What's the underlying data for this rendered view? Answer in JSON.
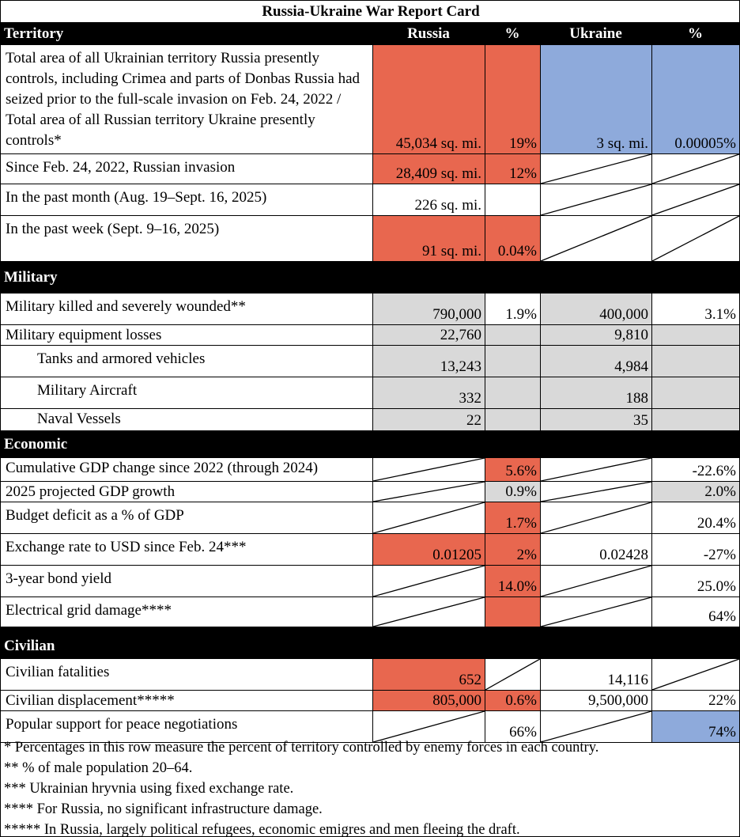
{
  "title": "Russia-Ukraine War Report Card",
  "sections": {
    "territory": {
      "label": "Territory",
      "russia": "Russia",
      "pct": "%",
      "ukraine": "Ukraine",
      "pct2": "%"
    },
    "military": {
      "label": "Military"
    },
    "economic": {
      "label": "Economic"
    },
    "civilian": {
      "label": "Civilian"
    }
  },
  "rows": {
    "t1": {
      "label": "Total area of all Ukrainian territory Russia presently controls, including Crimea and parts of Donbas Russia had seized prior to the full-scale invasion on Feb. 24, 2022 / Total area of all Russian territory Ukraine presently controls*",
      "russia": "45,034  sq. mi.",
      "russia_pct": "19%",
      "ukraine": "3  sq. mi.",
      "ukraine_pct": "0.00005%"
    },
    "t2": {
      "label": "Since Feb. 24, 2022, Russian invasion",
      "russia": "28,409  sq. mi.",
      "russia_pct": "12%"
    },
    "t3": {
      "label": "In the past month (Aug. 19–Sept. 16, 2025)",
      "russia": "226  sq. mi."
    },
    "t4": {
      "label": "In the past week (Sept. 9–16, 2025)",
      "russia": "91  sq. mi.",
      "russia_pct": "0.04%"
    },
    "m1": {
      "label": "Military killed and severely wounded**",
      "russia": "790,000",
      "russia_pct": "1.9%",
      "ukraine": "400,000",
      "ukraine_pct": "3.1%"
    },
    "m2": {
      "label": "Military equipment losses",
      "russia": "22,760",
      "ukraine": "9,810"
    },
    "m3": {
      "label": "Tanks and armored vehicles",
      "russia": "13,243",
      "ukraine": "4,984"
    },
    "m4": {
      "label": "Military Aircraft",
      "russia": "332",
      "ukraine": "188"
    },
    "m5": {
      "label": "Naval Vessels",
      "russia": "22",
      "ukraine": "35"
    },
    "e1": {
      "label": "Cumulative GDP change since 2022 (through 2024)",
      "russia_pct": "5.6%",
      "ukraine_pct": "-22.6%"
    },
    "e2": {
      "label": "2025 projected GDP growth",
      "russia_pct": "0.9%",
      "ukraine_pct": "2.0%"
    },
    "e3": {
      "label": "Budget deficit as a % of GDP",
      "russia_pct": "1.7%",
      "ukraine_pct": "20.4%"
    },
    "e4": {
      "label": "Exchange rate to USD since Feb. 24***",
      "russia": "0.01205",
      "russia_pct": "2%",
      "ukraine": "0.02428",
      "ukraine_pct": "-27%"
    },
    "e5": {
      "label": "3-year bond yield",
      "russia_pct": "14.0%",
      "ukraine_pct": "25.0%"
    },
    "e6": {
      "label": "Electrical grid damage****",
      "ukraine_pct": "64%"
    },
    "c1": {
      "label": "Civilian fatalities",
      "russia": "652",
      "ukraine": "14,116"
    },
    "c2": {
      "label": "Civilian displacement*****",
      "russia": "805,000",
      "russia_pct": "0.6%",
      "ukraine": "9,500,000",
      "ukraine_pct": "22%"
    },
    "c3": {
      "label": "Popular support for peace negotiations",
      "russia_pct": "66%",
      "ukraine_pct": "74%"
    }
  },
  "notes": [
    "* Percentages in this row measure the percent of territory controlled by enemy forces in each country.",
    "** % of male population 20–64.",
    "*** Ukrainian hryvnia using fixed exchange rate.",
    "**** For Russia, no significant infrastructure damage.",
    "***** In Russia, largely political refugees, economic emigres and men fleeing the draft."
  ],
  "colors": {
    "russia_highlight": "#e8674f",
    "ukraine_highlight": "#8eaadb",
    "neutral_fill": "#d9d9d9",
    "header_bg": "#000000"
  }
}
